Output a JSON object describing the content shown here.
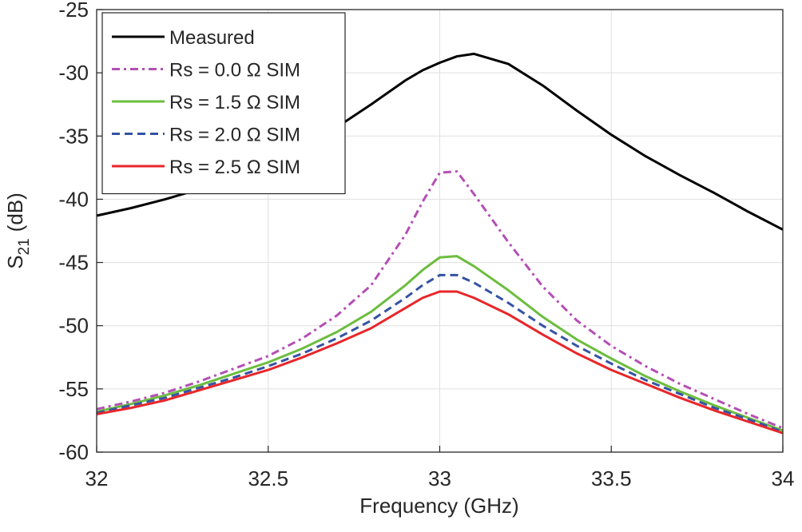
{
  "chart_data": {
    "type": "line",
    "x_label": "Frequency (GHz)",
    "y_label": {
      "text": "S",
      "subscript": "21",
      "unit": "(dB)"
    },
    "x": [
      32,
      32.1,
      32.2,
      32.3,
      32.4,
      32.5,
      32.6,
      32.7,
      32.8,
      32.9,
      32.95,
      33,
      33.05,
      33.1,
      33.2,
      33.3,
      33.4,
      33.5,
      33.6,
      33.7,
      33.8,
      33.9,
      34
    ],
    "series": [
      {
        "name": "Measured",
        "color": "#000000",
        "style": "solid",
        "values": [
          -41.3,
          -40.7,
          -40.0,
          -39.2,
          -38.3,
          -37.2,
          -35.9,
          -34.3,
          -32.5,
          -30.6,
          -29.8,
          -29.2,
          -28.7,
          -28.5,
          -29.3,
          -31.0,
          -33.0,
          -34.9,
          -36.6,
          -38.1,
          -39.5,
          -41.0,
          -42.4
        ]
      },
      {
        "name": "Rs = 0.0 Ω SIM",
        "color": "#b44fb4",
        "style": "dashdot",
        "values": [
          -56.6,
          -56.0,
          -55.3,
          -54.4,
          -53.4,
          -52.4,
          -51.0,
          -49.2,
          -46.8,
          -42.8,
          -40.2,
          -37.9,
          -37.8,
          -39.6,
          -43.4,
          -46.9,
          -49.6,
          -51.6,
          -53.2,
          -54.6,
          -55.8,
          -57.0,
          -58.1
        ]
      },
      {
        "name": "Rs = 1.5 Ω SIM",
        "color": "#6cbd3f",
        "style": "solid",
        "values": [
          -56.8,
          -56.2,
          -55.5,
          -54.7,
          -53.8,
          -52.9,
          -51.8,
          -50.5,
          -48.9,
          -46.8,
          -45.6,
          -44.6,
          -44.5,
          -45.3,
          -47.2,
          -49.3,
          -51.1,
          -52.6,
          -54.0,
          -55.2,
          -56.3,
          -57.3,
          -58.3
        ]
      },
      {
        "name": "Rs = 2.0 Ω SIM",
        "color": "#3553a4",
        "style": "dashed",
        "values": [
          -56.9,
          -56.3,
          -55.7,
          -54.9,
          -54.1,
          -53.2,
          -52.2,
          -51.0,
          -49.6,
          -47.8,
          -46.8,
          -46.0,
          -46.0,
          -46.6,
          -48.2,
          -50.0,
          -51.6,
          -53.0,
          -54.3,
          -55.4,
          -56.5,
          -57.4,
          -58.4
        ]
      },
      {
        "name": "Rs = 2.5 Ω SIM",
        "color": "#e8262a",
        "style": "solid",
        "values": [
          -57.0,
          -56.5,
          -55.9,
          -55.1,
          -54.3,
          -53.5,
          -52.5,
          -51.4,
          -50.2,
          -48.6,
          -47.8,
          -47.3,
          -47.3,
          -47.8,
          -49.1,
          -50.7,
          -52.2,
          -53.5,
          -54.6,
          -55.7,
          -56.7,
          -57.6,
          -58.5
        ]
      }
    ],
    "xlim": [
      32,
      34
    ],
    "xticks": [
      32,
      32.5,
      33,
      33.5,
      34
    ],
    "ylim": [
      -60,
      -25
    ],
    "yticks": [
      -60,
      -55,
      -50,
      -45,
      -40,
      -35,
      -30,
      -25
    ],
    "grid": true,
    "legend": "upper-left"
  }
}
